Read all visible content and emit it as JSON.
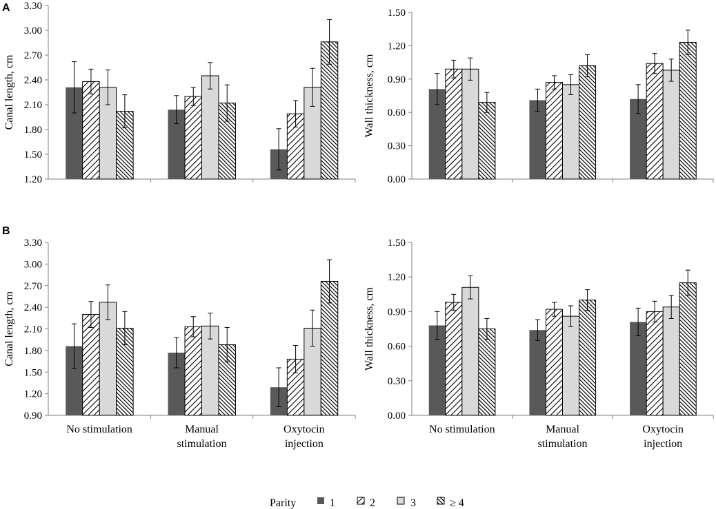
{
  "figure": {
    "panel_labels": [
      "A",
      "B"
    ],
    "legend": {
      "title": "Parity",
      "entries": [
        "1",
        "2",
        "3",
        "≥ 4"
      ]
    },
    "colors": {
      "parity_1": "#595959",
      "parity_3": "#d9d9d9",
      "stripe": "#000000",
      "axis": "#7f7f7f"
    }
  },
  "chart_data": [
    {
      "id": "A-left",
      "panel": "A",
      "type": "bar",
      "ylabel": "Canal length, cm",
      "xlabel": "",
      "ylim": [
        1.2,
        3.3
      ],
      "yticks": [
        "1.20",
        "1.50",
        "1.80",
        "2.10",
        "2.40",
        "2.70",
        "3.00",
        "3.30"
      ],
      "categories": [
        "No stimulation",
        "Manual stimulation",
        "Oxytocin injection"
      ],
      "show_category_labels": false,
      "series": [
        {
          "name": "1",
          "values": [
            2.31,
            2.04,
            1.56
          ],
          "errors": [
            0.31,
            0.17,
            0.25
          ]
        },
        {
          "name": "2",
          "values": [
            2.38,
            2.2,
            1.99
          ],
          "errors": [
            0.15,
            0.11,
            0.16
          ]
        },
        {
          "name": "3",
          "values": [
            2.31,
            2.45,
            2.31
          ],
          "errors": [
            0.21,
            0.16,
            0.23
          ]
        },
        {
          "name": "≥ 4",
          "values": [
            2.02,
            2.12,
            2.86
          ],
          "errors": [
            0.2,
            0.22,
            0.27
          ]
        }
      ]
    },
    {
      "id": "A-right",
      "panel": "A",
      "type": "bar",
      "ylabel": "Wall thickness, cm",
      "xlabel": "",
      "ylim": [
        0,
        1.5
      ],
      "yticks": [
        "0.00",
        "0.30",
        "0.60",
        "0.90",
        "1.20",
        "1.50"
      ],
      "categories": [
        "No stimulation",
        "Manual stimulation",
        "Oxytocin injection"
      ],
      "show_category_labels": false,
      "series": [
        {
          "name": "1",
          "values": [
            0.81,
            0.71,
            0.72
          ],
          "errors": [
            0.14,
            0.1,
            0.13
          ]
        },
        {
          "name": "2",
          "values": [
            0.99,
            0.87,
            1.04
          ],
          "errors": [
            0.08,
            0.06,
            0.09
          ]
        },
        {
          "name": "3",
          "values": [
            0.99,
            0.85,
            0.98
          ],
          "errors": [
            0.1,
            0.09,
            0.1
          ]
        },
        {
          "name": "≥ 4",
          "values": [
            0.69,
            1.02,
            1.23
          ],
          "errors": [
            0.09,
            0.1,
            0.11
          ]
        }
      ]
    },
    {
      "id": "B-left",
      "panel": "B",
      "type": "bar",
      "ylabel": "Canal length, cm",
      "xlabel": "",
      "ylim": [
        0.9,
        3.3
      ],
      "yticks": [
        "0.90",
        "1.20",
        "1.50",
        "1.80",
        "2.10",
        "2.40",
        "2.70",
        "3.00",
        "3.30"
      ],
      "categories": [
        "No stimulation",
        "Manual stimulation",
        "Oxytocin injection"
      ],
      "show_category_labels": true,
      "series": [
        {
          "name": "1",
          "values": [
            1.86,
            1.77,
            1.29
          ],
          "errors": [
            0.31,
            0.21,
            0.27
          ]
        },
        {
          "name": "2",
          "values": [
            2.3,
            2.13,
            1.68
          ],
          "errors": [
            0.18,
            0.14,
            0.19
          ]
        },
        {
          "name": "3",
          "values": [
            2.47,
            2.14,
            2.11
          ],
          "errors": [
            0.24,
            0.18,
            0.25
          ]
        },
        {
          "name": "≥ 4",
          "values": [
            2.11,
            1.88,
            2.76
          ],
          "errors": [
            0.23,
            0.24,
            0.3
          ]
        }
      ]
    },
    {
      "id": "B-right",
      "panel": "B",
      "type": "bar",
      "ylabel": "Wall thickness, cm",
      "xlabel": "",
      "ylim": [
        0,
        1.5
      ],
      "yticks": [
        "0.00",
        "0.30",
        "0.60",
        "0.90",
        "1.20",
        "1.50"
      ],
      "categories": [
        "No stimulation",
        "Manual stimulation",
        "Oxytocin injection"
      ],
      "show_category_labels": true,
      "series": [
        {
          "name": "1",
          "values": [
            0.78,
            0.74,
            0.81
          ],
          "errors": [
            0.12,
            0.09,
            0.12
          ]
        },
        {
          "name": "2",
          "values": [
            0.98,
            0.92,
            0.9
          ],
          "errors": [
            0.07,
            0.06,
            0.09
          ]
        },
        {
          "name": "3",
          "values": [
            1.11,
            0.86,
            0.94
          ],
          "errors": [
            0.1,
            0.09,
            0.1
          ]
        },
        {
          "name": "≥ 4",
          "values": [
            0.75,
            1.0,
            1.15
          ],
          "errors": [
            0.09,
            0.09,
            0.11
          ]
        }
      ]
    }
  ]
}
